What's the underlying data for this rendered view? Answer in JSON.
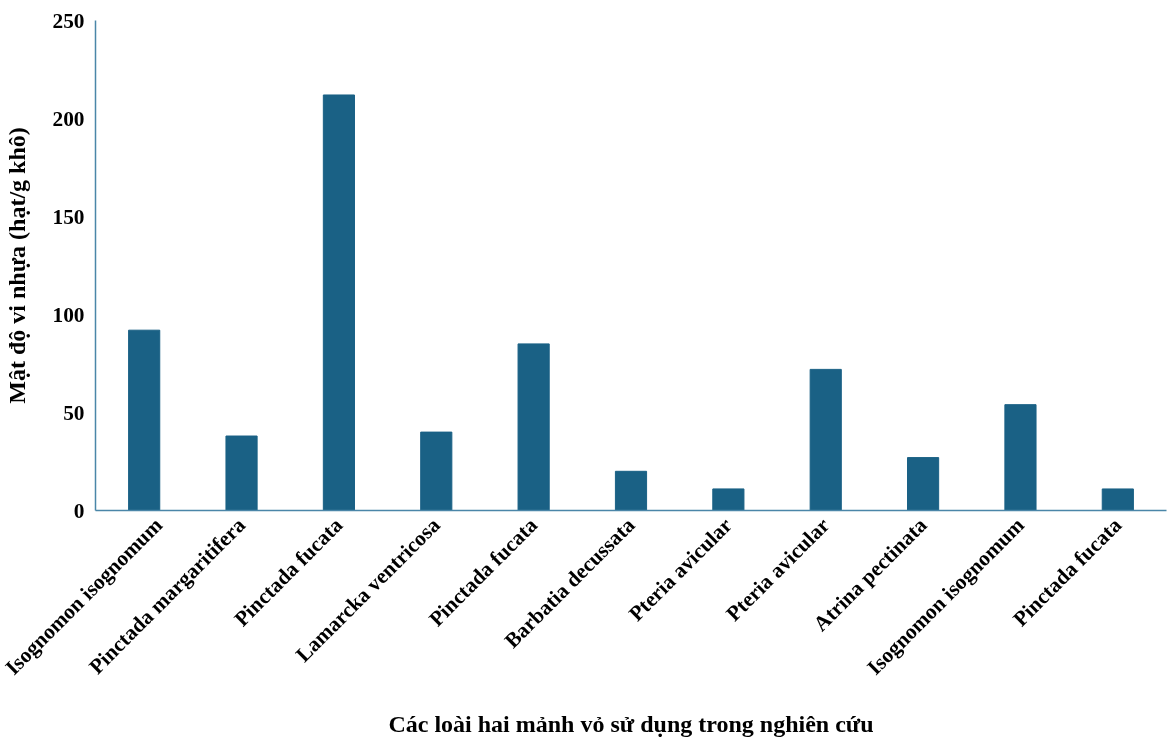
{
  "chart_data": {
    "type": "bar",
    "xlabel": "Các loài hai mảnh vỏ sử dụng trong nghiên cứu",
    "ylabel": "Mật độ vi nhựa (hạt/g khô)",
    "categories": [
      "Isognomon isognomum",
      "Pinctada margaritifera",
      "Pinctada fucata",
      "Lamarcka ventricosa",
      "Pinctada fucata",
      "Barbatia decussata",
      "Pteria avicular",
      "Pteria avicular",
      "Atrina pectinata",
      "Isognomon isognomum",
      "Pinctada fucata"
    ],
    "values": [
      92,
      38,
      212,
      40,
      85,
      20,
      11,
      72,
      27,
      54,
      11
    ],
    "color": "#1a6185",
    "ylim": [
      0,
      250
    ],
    "yticks": [
      0,
      50,
      100,
      150,
      200,
      250
    ]
  }
}
